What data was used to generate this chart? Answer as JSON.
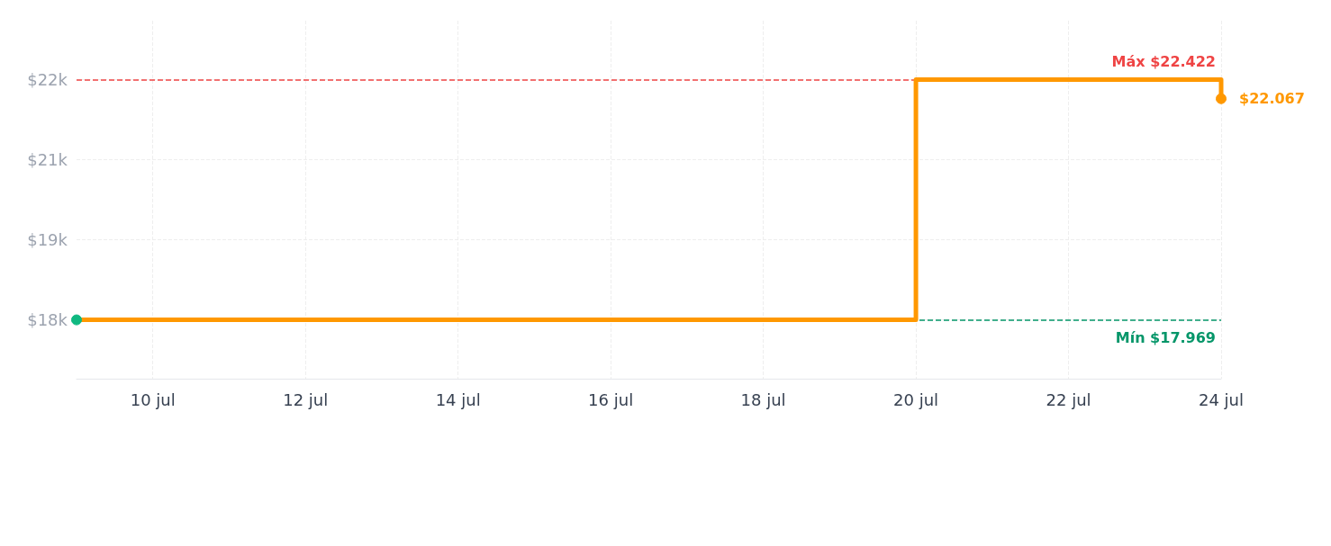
{
  "chart_data": {
    "type": "step",
    "x": [
      "--07-09",
      "--07-20",
      "--07-24"
    ],
    "series": [
      {
        "color": "#ff9800",
        "values": [
          17969,
          22422,
          22067
        ],
        "colors": [
          "#10b981",
          null,
          "#ff9800"
        ],
        "value_labels": [
          null,
          null,
          "$22.067"
        ]
      }
    ],
    "xlim": [
      "--07-09",
      "--07-24"
    ],
    "xticks": [
      {
        "value": "--07-10",
        "label": "10 jul"
      },
      {
        "value": "--07-12",
        "label": "12 jul"
      },
      {
        "value": "--07-14",
        "label": "14 jul"
      },
      {
        "value": "--07-16",
        "label": "16 jul"
      },
      {
        "value": "--07-18",
        "label": "18 jul"
      },
      {
        "value": "--07-20",
        "label": "20 jul"
      },
      {
        "value": "--07-22",
        "label": "22 jul"
      },
      {
        "value": "--07-24",
        "label": "24 jul"
      }
    ],
    "ylim": [
      16879,
      23512
    ],
    "yticks": [
      {
        "value": 17969,
        "label": "$18k"
      },
      {
        "value": 19453,
        "label": "$19k"
      },
      {
        "value": 20938,
        "label": "$21k"
      },
      {
        "value": 22422,
        "label": "$22k"
      }
    ],
    "ref_lines": [
      {
        "axis": "y",
        "value": 22422,
        "label": "Máx $22.422",
        "color": "#ef4444",
        "line_style": "dashed"
      },
      {
        "axis": "y",
        "value": 17969,
        "label": "Mín $17.969",
        "color": "#059669",
        "line_style": "dashed"
      }
    ],
    "grid": true,
    "marker": "circle",
    "line_style": "solid"
  }
}
